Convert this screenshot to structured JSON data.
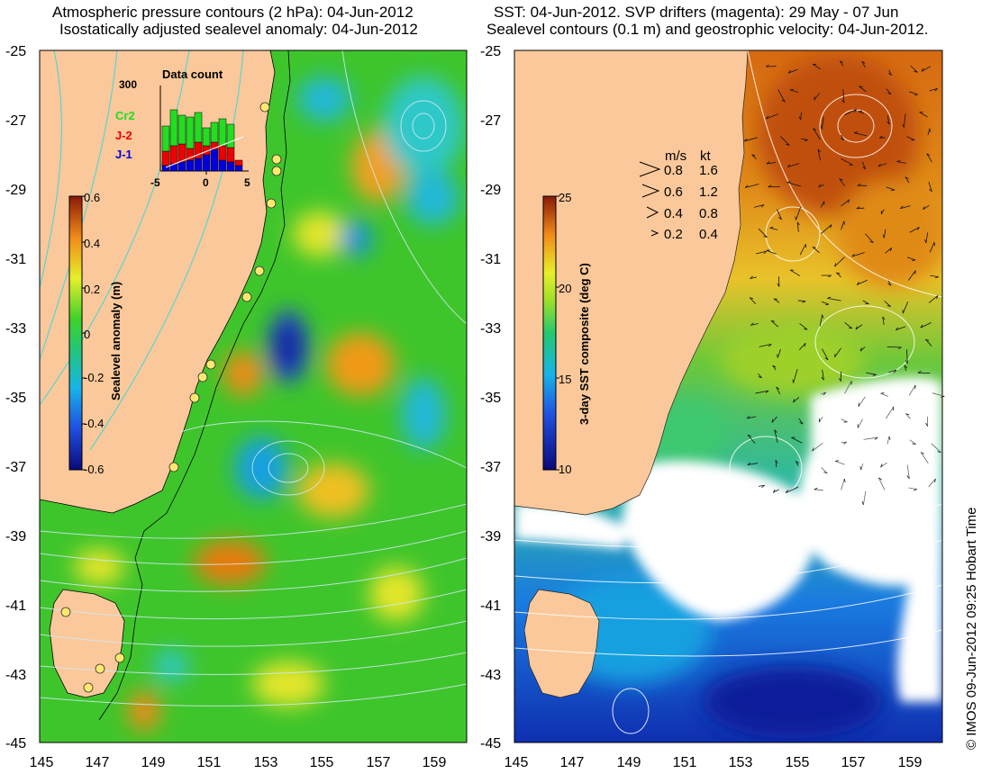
{
  "left_panel": {
    "title_line1": "Atmospheric pressure contours (2 hPa): 04-Jun-2012",
    "title_line2": "Isostatically adjusted sealevel anomaly: 04-Jun-2012",
    "colorbar_label": "Sealevel anomaly (m)",
    "colorbar_ticks": [
      "0.6",
      "0.4",
      "0.2",
      "0",
      "-0.2",
      "-0.4",
      "-0.6"
    ],
    "histogram": {
      "title": "Data count",
      "y_max_label": "300",
      "x_ticks": [
        "-5",
        "0",
        "5"
      ],
      "legend": [
        {
          "label": "Cr2",
          "color": "#22dd22"
        },
        {
          "label": "J-2",
          "color": "#ee0000"
        },
        {
          "label": "J-1",
          "color": "#0000dd"
        }
      ]
    }
  },
  "right_panel": {
    "title_line1": "SST: 04-Jun-2012. SVP drifters (magenta): 29 May - 07 Jun",
    "title_line2": "Sealevel contours (0.1 m) and geostrophic velocity: 04-Jun-2012.",
    "colorbar_label": "3-day SST composite (deg C)",
    "colorbar_ticks": [
      "25",
      "20",
      "15",
      "10"
    ],
    "velocity_legend": {
      "header_ms": "m/s",
      "header_kt": "kt",
      "rows": [
        {
          "ms": "0.8",
          "kt": "1.6"
        },
        {
          "ms": "0.6",
          "kt": "1.2"
        },
        {
          "ms": "0.4",
          "kt": "0.8"
        },
        {
          "ms": "0.2",
          "kt": "0.4"
        }
      ]
    }
  },
  "axes": {
    "lat_ticks": [
      "-25",
      "-27",
      "-29",
      "-31",
      "-33",
      "-35",
      "-37",
      "-39",
      "-41",
      "-43",
      "-45"
    ],
    "lon_ticks": [
      "145",
      "147",
      "149",
      "151",
      "153",
      "155",
      "157",
      "159"
    ]
  },
  "credit": "© IMOS 09-Jun-2012 09:25 Hobart Time",
  "colors": {
    "land": "#fac89a",
    "ocean_green": "#33c22a",
    "sst_warm": "#e07a10",
    "sst_cold": "#1a4fd8"
  }
}
